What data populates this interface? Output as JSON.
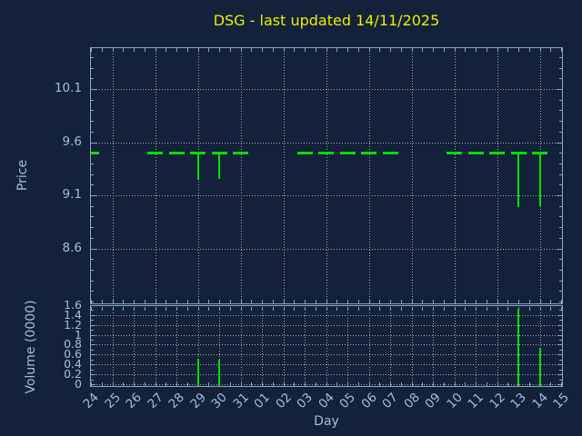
{
  "title": {
    "text": "DSG - last updated 14/11/2025"
  },
  "colors": {
    "background": "#13213A",
    "axis": "#8AA7C7",
    "labels": "#A3BFDB",
    "grid": "#A9A9A9",
    "data_green": "#00DF00",
    "title_yellow": "#EDED00"
  },
  "chart_data": [
    {
      "type": "line",
      "panel": "price",
      "ylabel": "Price",
      "xlabel": "Day",
      "categories": [
        "24",
        "25",
        "26",
        "27",
        "28",
        "29",
        "30",
        "31",
        "01",
        "02",
        "03",
        "04",
        "05",
        "06",
        "07",
        "08",
        "09",
        "10",
        "11",
        "12",
        "13",
        "14",
        "15"
      ],
      "yticks": [
        10.1,
        9.6,
        9.1,
        8.6
      ],
      "ytick_labels": [
        "10.1",
        "9.6",
        "9.1",
        "8.6"
      ],
      "ylim": [
        8.08,
        10.5
      ],
      "grid": "dotted, horizontal at yticks, vertical every 2nd day (25,27,29,31,02,04,06,08,10,12,14)",
      "legend": "none",
      "points": [
        {
          "day": "24",
          "close": 9.5,
          "low": 9.5
        },
        {
          "day": "27",
          "close": 9.5,
          "low": 9.5
        },
        {
          "day": "28",
          "close": 9.5,
          "low": 9.5
        },
        {
          "day": "29",
          "close": 9.5,
          "low": 9.24
        },
        {
          "day": "30",
          "close": 9.5,
          "low": 9.25
        },
        {
          "day": "31",
          "close": 9.5,
          "low": 9.5
        },
        {
          "day": "03",
          "close": 9.5,
          "low": 9.5
        },
        {
          "day": "04",
          "close": 9.5,
          "low": 9.5
        },
        {
          "day": "05",
          "close": 9.5,
          "low": 9.5
        },
        {
          "day": "06",
          "close": 9.5,
          "low": 9.5
        },
        {
          "day": "07",
          "close": 9.5,
          "low": 9.5
        },
        {
          "day": "10",
          "close": 9.5,
          "low": 9.5
        },
        {
          "day": "11",
          "close": 9.5,
          "low": 9.5
        },
        {
          "day": "12",
          "close": 9.5,
          "low": 9.5
        },
        {
          "day": "13",
          "close": 9.5,
          "low": 8.99
        },
        {
          "day": "14",
          "close": 9.5,
          "low": 9.0
        }
      ],
      "non_trading_days": [
        "25",
        "26",
        "01",
        "02",
        "08",
        "09",
        "15"
      ]
    },
    {
      "type": "bar",
      "panel": "volume",
      "ylabel": "Volume (0000)",
      "xlabel": "Day",
      "categories": [
        "24",
        "25",
        "26",
        "27",
        "28",
        "29",
        "30",
        "31",
        "01",
        "02",
        "03",
        "04",
        "05",
        "06",
        "07",
        "08",
        "09",
        "10",
        "11",
        "12",
        "13",
        "14",
        "15"
      ],
      "yticks": [
        1.6,
        1.4,
        1.2,
        1,
        0.8,
        0.6,
        0.4,
        0.2,
        0
      ],
      "ytick_labels": [
        "1.6",
        "1.4",
        "1.2",
        "1",
        "0.8",
        "0.6",
        "0.4",
        "0.2",
        "0"
      ],
      "ylim": [
        0,
        1.6
      ],
      "grid": "dotted, horizontal every 0.2, vertical every day",
      "bars": [
        {
          "day": "29",
          "value": 0.51
        },
        {
          "day": "30",
          "value": 0.49
        },
        {
          "day": "13",
          "value": 1.53
        },
        {
          "day": "14",
          "value": 0.73
        }
      ]
    }
  ]
}
